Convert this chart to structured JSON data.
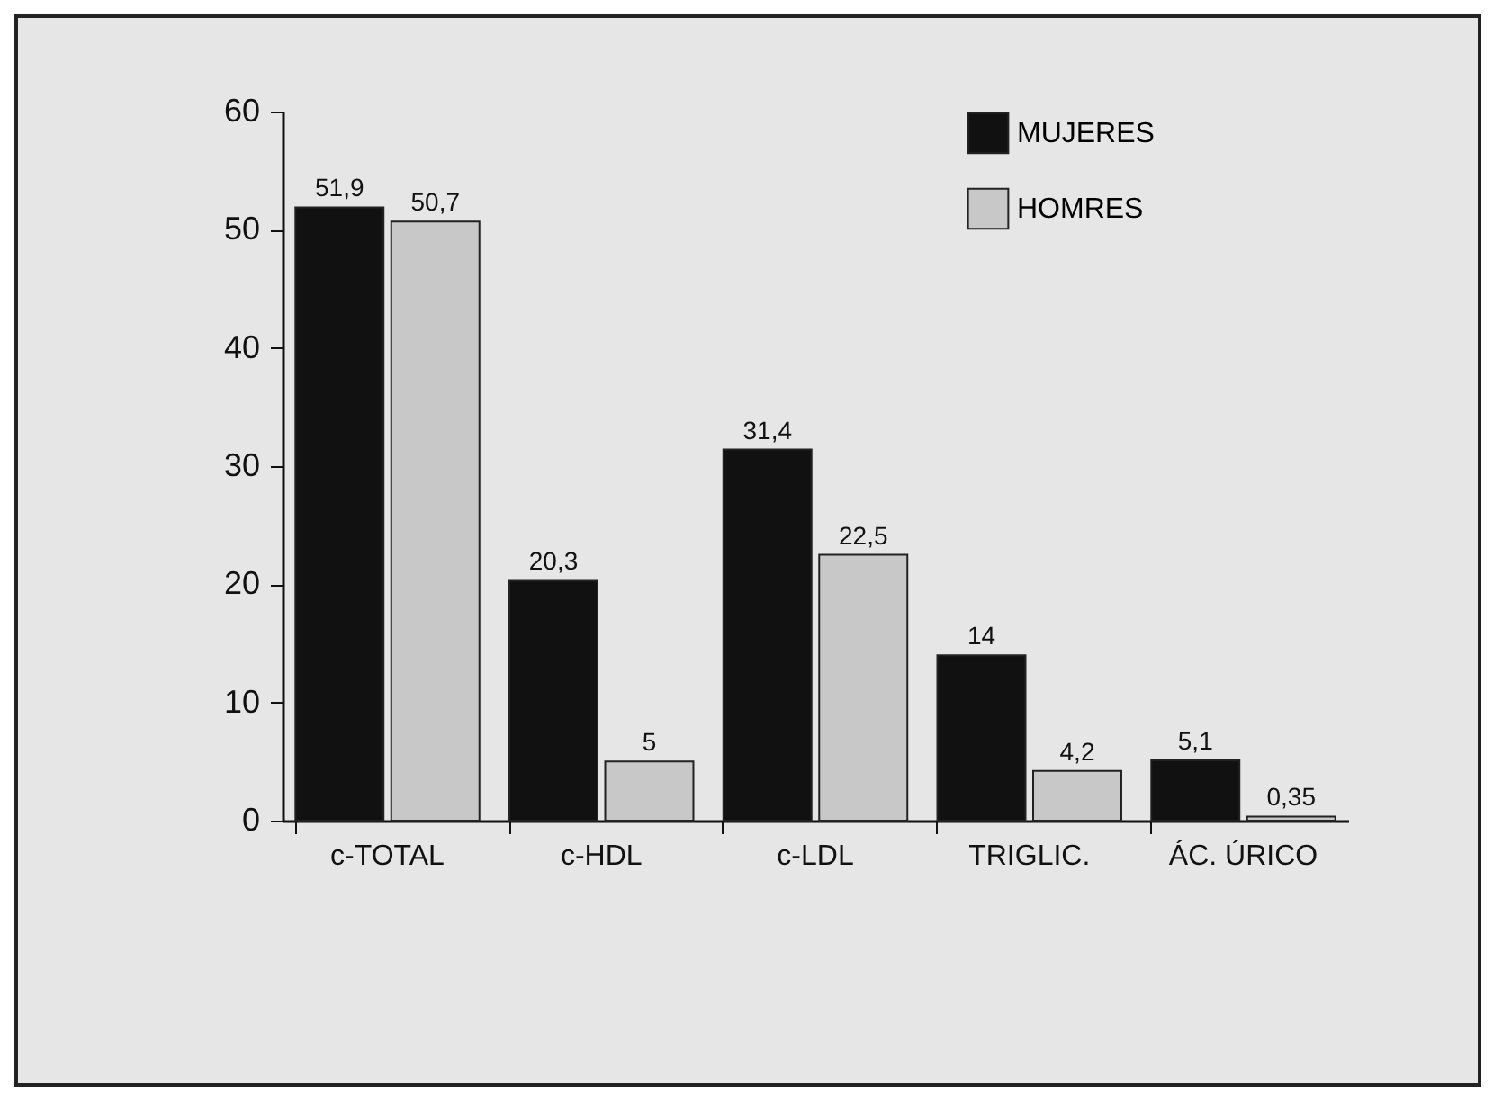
{
  "chart_data": {
    "type": "bar",
    "categories": [
      "c-TOTAL",
      "c-HDL",
      "c-LDL",
      "TRIGLIC.",
      "ÁC. ÚRICO"
    ],
    "series": [
      {
        "name": "MUJERES",
        "color": "#111111",
        "values": [
          51.9,
          20.3,
          31.4,
          14,
          5.1
        ],
        "value_labels": [
          "51,9",
          "20,3",
          "31,4",
          "14",
          "5,1"
        ]
      },
      {
        "name": "HOMRES",
        "color": "#c8c8c8",
        "values": [
          50.7,
          5,
          22.5,
          4.2,
          0.35
        ],
        "value_labels": [
          "50,7",
          "5",
          "22,5",
          "4,2",
          "0,35"
        ]
      }
    ],
    "ylim": [
      0,
      60
    ],
    "yticks": [
      0,
      10,
      20,
      30,
      40,
      50,
      60
    ],
    "grid": false,
    "legend": "top right"
  }
}
